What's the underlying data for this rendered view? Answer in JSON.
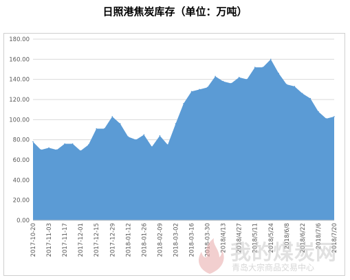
{
  "chart_data": {
    "type": "area",
    "title": "日照港焦炭库存（单位：万吨）",
    "ylim": [
      0,
      180
    ],
    "yticks": [
      "0.00",
      "20.00",
      "40.00",
      "60.00",
      "80.00",
      "100.00",
      "120.00",
      "140.00",
      "160.00",
      "180.00"
    ],
    "x_tick_labels": [
      "2017-10-20",
      "2017-11-03",
      "2017-11-17",
      "2017-12-01",
      "2017-12-15",
      "2017-12-29",
      "2018-01-12",
      "2018-01-26",
      "2018-02-09",
      "2018-03-02",
      "2018-03-16",
      "2018-03-30",
      "2018/4/13",
      "2018/4/27",
      "2018/5/11",
      "2018/5/24",
      "2018/6/8",
      "2018/6/22",
      "2018/7/6",
      "2018/7/20"
    ],
    "values": [
      78,
      70,
      72,
      70,
      76,
      76,
      69,
      75,
      91,
      91,
      103,
      96,
      83,
      80,
      85,
      73,
      84,
      75,
      96,
      116,
      128,
      130,
      132,
      143,
      138,
      136,
      142,
      140,
      152,
      152,
      160,
      146,
      135,
      133,
      126,
      121,
      108,
      101,
      103
    ],
    "fill_color": "#5b9bd5",
    "grid": true
  },
  "watermark": {
    "main": "我的煤炭网",
    "sub": "青岛大宗商品交易中心"
  }
}
